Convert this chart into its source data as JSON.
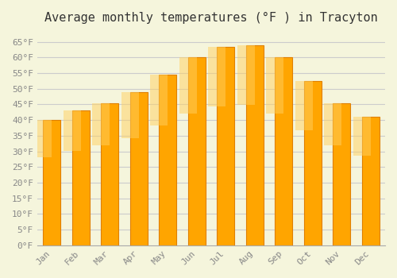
{
  "title": "Average monthly temperatures (°F ) in Tracyton",
  "months": [
    "Jan",
    "Feb",
    "Mar",
    "Apr",
    "May",
    "Jun",
    "Jul",
    "Aug",
    "Sep",
    "Oct",
    "Nov",
    "Dec"
  ],
  "values": [
    40,
    43,
    45.5,
    49,
    54.5,
    60,
    63.5,
    64,
    60,
    52.5,
    45.5,
    41
  ],
  "bar_color": "#FFA500",
  "bar_edge_color": "#E08000",
  "background_color": "#F5F5DC",
  "grid_color": "#CCCCCC",
  "ylim": [
    0,
    68
  ],
  "yticks": [
    0,
    5,
    10,
    15,
    20,
    25,
    30,
    35,
    40,
    45,
    50,
    55,
    60,
    65
  ],
  "ytick_labels": [
    "0°F",
    "5°F",
    "10°F",
    "15°F",
    "20°F",
    "25°F",
    "30°F",
    "35°F",
    "40°F",
    "45°F",
    "50°F",
    "55°F",
    "60°F",
    "65°F"
  ],
  "title_fontsize": 11,
  "tick_fontsize": 8,
  "title_font": "monospace",
  "tick_font": "monospace"
}
